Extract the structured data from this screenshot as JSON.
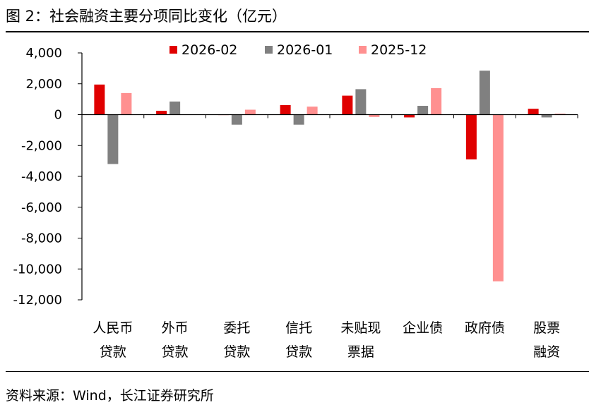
{
  "figure": {
    "title": "图 2：社会融资主要分项同比变化（亿元）",
    "source": "资料来源：Wind，长江证券研究所"
  },
  "chart_data": {
    "type": "bar",
    "title": "图 2：社会融资主要分项同比变化（亿元）",
    "unit": "亿元",
    "categories": [
      [
        "人民币",
        "贷款"
      ],
      [
        "外币",
        "贷款"
      ],
      [
        "委托",
        "贷款"
      ],
      [
        "信托",
        "贷款"
      ],
      [
        "未贴现",
        "票据"
      ],
      [
        "企业债"
      ],
      [
        "政府债"
      ],
      [
        "股票",
        "融资"
      ]
    ],
    "series": [
      {
        "name": "2026-02",
        "color": "#e00000",
        "values": [
          1950,
          250,
          0,
          620,
          1230,
          -180,
          -2900,
          380
        ]
      },
      {
        "name": "2026-01",
        "color": "#808080",
        "values": [
          -3200,
          850,
          -650,
          -650,
          1650,
          570,
          2850,
          -180
        ]
      },
      {
        "name": "2025-12",
        "color": "#ff9090",
        "values": [
          1400,
          20,
          320,
          520,
          -150,
          1720,
          -10800,
          60
        ]
      }
    ],
    "ylim": [
      -12000,
      4000
    ],
    "yticks": [
      4000,
      2000,
      0,
      -2000,
      -4000,
      -6000,
      -8000,
      -10000,
      -12000
    ],
    "ytick_labels": [
      "4,000",
      "2,000",
      "0",
      "-2,000",
      "-4,000",
      "-6,000",
      "-8,000",
      "-10,000",
      "-12,000"
    ],
    "legend_position": "top",
    "grid": false,
    "xlabel": "",
    "ylabel": ""
  }
}
